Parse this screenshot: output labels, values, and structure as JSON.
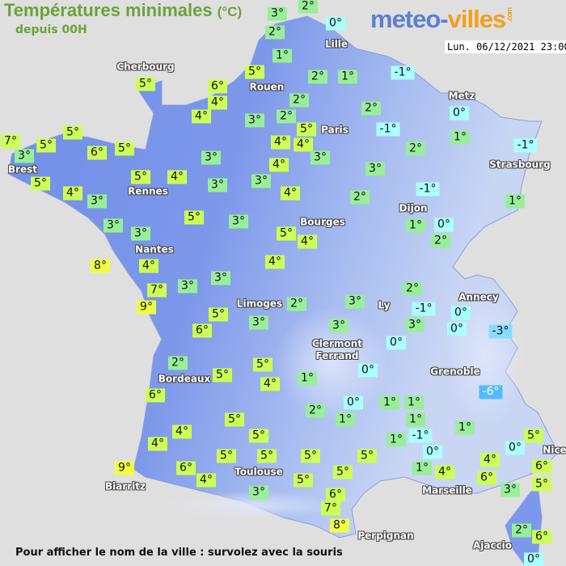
{
  "header": {
    "title": "Températures minimales",
    "unit": "(°C)",
    "subtitle": "depuis 00H"
  },
  "logo": {
    "part1": "meteo-",
    "part2": "villes",
    "part3": ".com"
  },
  "datetime": "Lun. 06/12/2021 23:00",
  "footer": "Pour afficher le nom de la ville : survolez avec la souris",
  "colors": {
    "sea": "#e0dfdf",
    "land": "#6f8ee8",
    "land_high": "#c8d6f4",
    "warm": "#eeff44",
    "mild": "#ccff55",
    "cool": "#99ee99",
    "zero": "#aaffff",
    "cold": "#88ddff",
    "very_cold": "#55bbff"
  },
  "cities": [
    "Cherbourg",
    "Rouen",
    "Lille",
    "Paris",
    "Metz",
    "Strasbourg",
    "Brest",
    "Rennes",
    "Nantes",
    "Bourges",
    "Dijon",
    "Limoges",
    "Annecy",
    "Ly",
    "Clermont\nFerrand",
    "Grenoble",
    "Bordeaux",
    "Toulouse",
    "Biarritz",
    "Marseille",
    "Perpignan",
    "Nice",
    "Ajaccio"
  ],
  "temperatures": [
    3,
    2,
    0,
    2,
    1,
    5,
    2,
    1,
    -1,
    5,
    6,
    4,
    4,
    3,
    2,
    2,
    5,
    2,
    -1,
    0,
    1,
    2,
    -1,
    7,
    3,
    5,
    5,
    6,
    5,
    3,
    4,
    4,
    3,
    4,
    3,
    3,
    5,
    4,
    3,
    5,
    4,
    3,
    4,
    2,
    -1,
    1,
    3,
    3,
    5,
    3,
    5,
    4,
    1,
    0,
    2,
    8,
    4,
    3,
    4,
    7,
    3,
    9,
    2,
    3,
    2,
    -1,
    0,
    0,
    -3,
    3,
    5,
    6,
    3,
    3,
    0,
    2,
    0,
    5,
    4,
    5,
    1,
    6,
    -6,
    0,
    1,
    1,
    2,
    1,
    1,
    1,
    5,
    4,
    5,
    1,
    -1,
    5,
    0,
    4,
    9,
    6,
    4,
    5,
    5,
    5,
    5,
    5,
    5,
    0,
    1,
    4,
    4,
    6,
    6,
    5,
    3,
    3,
    6,
    7,
    8,
    2,
    6,
    0
  ]
}
